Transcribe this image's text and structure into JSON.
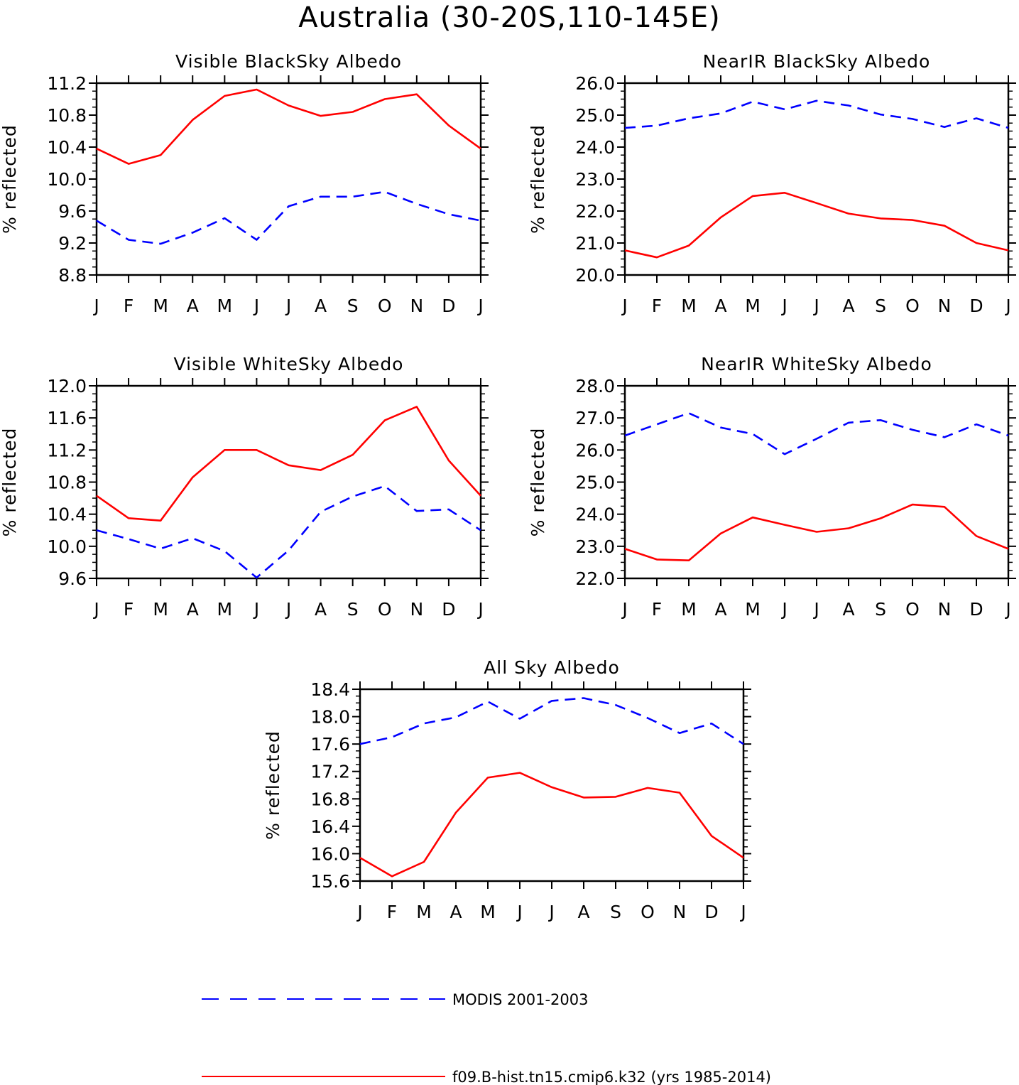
{
  "page_title": "Australia (30-20S,110-145E)",
  "colors": {
    "model": "#ff0000",
    "obs": "#0000ff",
    "axis": "#000000"
  },
  "legend": [
    {
      "key": "obs",
      "label": "MODIS 2001-2003",
      "style": "dashed",
      "color": "#0000ff"
    },
    {
      "key": "model",
      "label": "f09.B-hist.tn15.cmip6.k32 (yrs 1985-2014)",
      "style": "solid",
      "color": "#ff0000"
    }
  ],
  "chart_data": [
    {
      "type": "line",
      "title": "Visible BlackSky Albedo",
      "ylabel": "% reflected",
      "xlabel": "",
      "categories": [
        "J",
        "F",
        "M",
        "A",
        "M",
        "J",
        "J",
        "A",
        "S",
        "O",
        "N",
        "D",
        "J"
      ],
      "ylim": [
        8.8,
        11.2
      ],
      "yticks": [
        "8.8",
        "9.2",
        "9.6",
        "10.0",
        "10.4",
        "10.8",
        "11.2"
      ],
      "series": [
        {
          "key": "obs",
          "values": [
            9.48,
            9.24,
            9.19,
            9.33,
            9.51,
            9.24,
            9.66,
            9.78,
            9.78,
            9.84,
            9.69,
            9.56,
            9.48
          ]
        },
        {
          "key": "model",
          "values": [
            10.38,
            10.19,
            10.3,
            10.74,
            11.04,
            11.12,
            10.92,
            10.79,
            10.84,
            11.0,
            11.06,
            10.67,
            10.38
          ]
        }
      ]
    },
    {
      "type": "line",
      "title": "NearIR BlackSky Albedo",
      "ylabel": "% reflected",
      "xlabel": "",
      "categories": [
        "J",
        "F",
        "M",
        "A",
        "M",
        "J",
        "J",
        "A",
        "S",
        "O",
        "N",
        "D",
        "J"
      ],
      "ylim": [
        20.0,
        26.0
      ],
      "yticks": [
        "20.0",
        "21.0",
        "22.0",
        "23.0",
        "24.0",
        "25.0",
        "26.0"
      ],
      "series": [
        {
          "key": "obs",
          "values": [
            24.6,
            24.67,
            24.9,
            25.05,
            25.42,
            25.18,
            25.45,
            25.3,
            25.02,
            24.88,
            24.63,
            24.9,
            24.6
          ]
        },
        {
          "key": "model",
          "values": [
            20.77,
            20.55,
            20.92,
            21.8,
            22.47,
            22.57,
            22.25,
            21.92,
            21.77,
            21.72,
            21.54,
            21.0,
            20.77
          ]
        }
      ]
    },
    {
      "type": "line",
      "title": "Visible WhiteSky Albedo",
      "ylabel": "% reflected",
      "xlabel": "",
      "categories": [
        "J",
        "F",
        "M",
        "A",
        "M",
        "J",
        "J",
        "A",
        "S",
        "O",
        "N",
        "D",
        "J"
      ],
      "ylim": [
        9.6,
        12.0
      ],
      "yticks": [
        "9.6",
        "10.0",
        "10.4",
        "10.8",
        "11.2",
        "11.6",
        "12.0"
      ],
      "series": [
        {
          "key": "obs",
          "values": [
            10.2,
            10.09,
            9.97,
            10.1,
            9.94,
            9.61,
            9.95,
            10.43,
            10.62,
            10.75,
            10.44,
            10.46,
            10.2
          ]
        },
        {
          "key": "model",
          "values": [
            10.63,
            10.35,
            10.32,
            10.86,
            11.2,
            11.2,
            11.01,
            10.95,
            11.14,
            11.57,
            11.74,
            11.07,
            10.63
          ]
        }
      ]
    },
    {
      "type": "line",
      "title": "NearIR WhiteSky Albedo",
      "ylabel": "% reflected",
      "xlabel": "",
      "categories": [
        "J",
        "F",
        "M",
        "A",
        "M",
        "J",
        "J",
        "A",
        "S",
        "O",
        "N",
        "D",
        "J"
      ],
      "ylim": [
        22.0,
        28.0
      ],
      "yticks": [
        "22.0",
        "23.0",
        "24.0",
        "25.0",
        "26.0",
        "27.0",
        "28.0"
      ],
      "series": [
        {
          "key": "obs",
          "values": [
            26.45,
            26.8,
            27.15,
            26.7,
            26.5,
            25.87,
            26.35,
            26.85,
            26.93,
            26.63,
            26.4,
            26.8,
            26.45
          ]
        },
        {
          "key": "model",
          "values": [
            22.92,
            22.59,
            22.56,
            23.4,
            23.9,
            23.67,
            23.45,
            23.56,
            23.87,
            24.3,
            24.23,
            23.32,
            22.92
          ]
        }
      ]
    },
    {
      "type": "line",
      "title": "All Sky Albedo",
      "ylabel": "% reflected",
      "xlabel": "",
      "categories": [
        "J",
        "F",
        "M",
        "A",
        "M",
        "J",
        "J",
        "A",
        "S",
        "O",
        "N",
        "D",
        "J"
      ],
      "ylim": [
        15.6,
        18.4
      ],
      "yticks": [
        "15.6",
        "16.0",
        "16.4",
        "16.8",
        "17.2",
        "17.6",
        "18.0",
        "18.4"
      ],
      "series": [
        {
          "key": "obs",
          "values": [
            17.6,
            17.7,
            17.9,
            17.99,
            18.22,
            17.97,
            18.23,
            18.27,
            18.17,
            17.98,
            17.76,
            17.9,
            17.6
          ]
        },
        {
          "key": "model",
          "values": [
            15.94,
            15.67,
            15.88,
            16.6,
            17.11,
            17.18,
            16.97,
            16.82,
            16.83,
            16.96,
            16.89,
            16.26,
            15.94
          ]
        }
      ]
    }
  ]
}
